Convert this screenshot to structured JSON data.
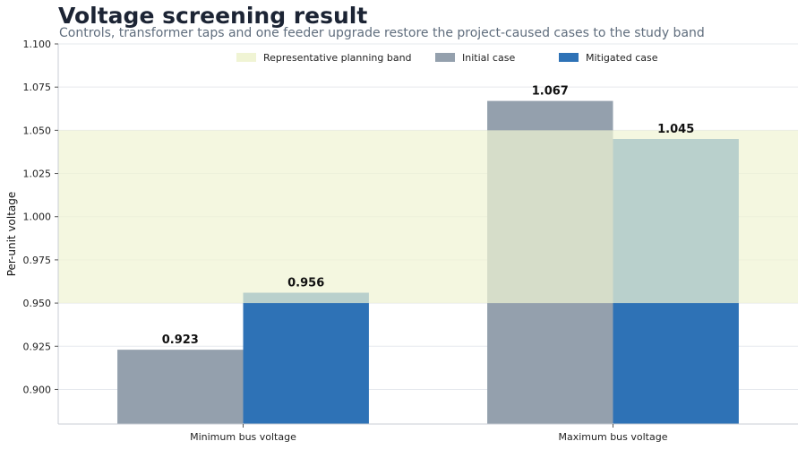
{
  "chart_data": {
    "type": "bar",
    "title": "Voltage screening result",
    "subtitle": "Controls, transformer taps and one feeder upgrade restore the project-caused cases to the study band",
    "ylabel": "Per-unit voltage",
    "xlabel": "",
    "categories": [
      "Minimum bus voltage",
      "Maximum bus voltage"
    ],
    "series": [
      {
        "name": "Initial case",
        "values": [
          0.923,
          1.067
        ],
        "color": "#94a0ad"
      },
      {
        "name": "Mitigated case",
        "values": [
          0.956,
          1.045
        ],
        "color": "#2e72b6"
      }
    ],
    "band": {
      "name": "Representative planning band",
      "range": [
        0.95,
        1.05
      ],
      "color": "#f0f4d4"
    },
    "ylim": [
      0.88,
      1.1
    ],
    "yticks": [
      "0.900",
      "0.925",
      "0.950",
      "0.975",
      "1.000",
      "1.025",
      "1.050",
      "1.075",
      "1.100"
    ],
    "data_labels": [
      "0.923",
      "0.956",
      "1.067",
      "1.045"
    ],
    "grid": true,
    "legend_position": "top-center"
  }
}
